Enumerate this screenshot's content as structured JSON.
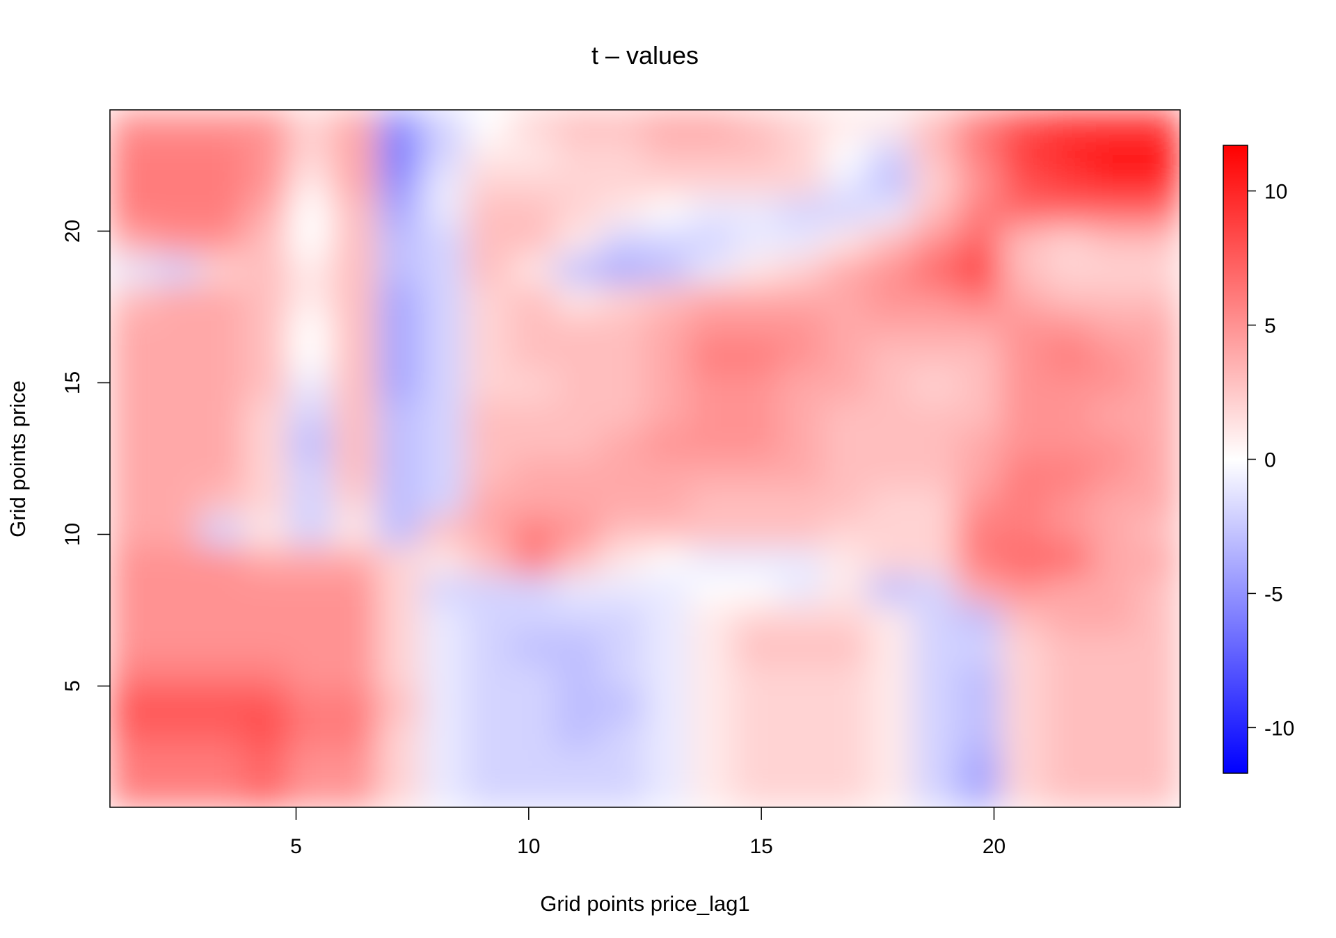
{
  "chart_data": {
    "type": "heatmap",
    "title": "t – values",
    "xlabel": "Grid points price_lag1",
    "ylabel": "Grid points price",
    "xlim": [
      1,
      24
    ],
    "ylim": [
      1,
      24
    ],
    "x_ticks": [
      5,
      10,
      15,
      20
    ],
    "y_ticks": [
      5,
      10,
      15,
      20
    ],
    "colorbar": {
      "min": -11.7,
      "max": 11.7,
      "ticks": [
        -10,
        -5,
        0,
        5,
        10
      ],
      "low_color": "#0000ff",
      "mid_color": "#ffffff",
      "high_color": "#ff0000"
    },
    "grid": false,
    "legend": "right",
    "rows_from_y1": [
      [
        6,
        6,
        6,
        7,
        5,
        5,
        2,
        -1,
        -2,
        -2,
        -2,
        -2,
        -1,
        1,
        2,
        2,
        2,
        1,
        -2,
        -4,
        2,
        3,
        3,
        3
      ],
      [
        6,
        6,
        6,
        7,
        5,
        5,
        2,
        -1,
        -2,
        -2,
        -2,
        -2,
        -1,
        1,
        2,
        2,
        2,
        1,
        -2,
        -4,
        2,
        3,
        3,
        3
      ],
      [
        7,
        7,
        7,
        8,
        6,
        6,
        2,
        -1,
        -2,
        -2,
        -3,
        -2,
        -1,
        1,
        2,
        2,
        2,
        1,
        -2,
        -3,
        2,
        3,
        3,
        3
      ],
      [
        8,
        8,
        8,
        8,
        6,
        6,
        3,
        -1,
        -2,
        -2,
        -3,
        -3,
        -1,
        1,
        2,
        2,
        2,
        1,
        -2,
        -3,
        2,
        3,
        3,
        3
      ],
      [
        6,
        6,
        6,
        6,
        5,
        5,
        2,
        -1,
        -2,
        -2,
        -3,
        -2,
        -1,
        1,
        2,
        2,
        2,
        1,
        -2,
        -3,
        2,
        3,
        3,
        3
      ],
      [
        5,
        5,
        5,
        5,
        5,
        5,
        2,
        -1,
        -2,
        -3,
        -3,
        -2,
        -1,
        1,
        3,
        3,
        3,
        1,
        -2,
        -2,
        2,
        3,
        3,
        3
      ],
      [
        5,
        5,
        5,
        5,
        5,
        5,
        2,
        -1,
        -2,
        -2,
        -2,
        -2,
        -1,
        1,
        2,
        2,
        2,
        1,
        -2,
        -3,
        3,
        4,
        4,
        3
      ],
      [
        5,
        5,
        5,
        5,
        5,
        5,
        2,
        -2,
        -2,
        -2,
        -1,
        -1,
        -1,
        0,
        0,
        -1,
        1,
        -3,
        -2,
        4,
        5,
        4,
        4,
        3
      ],
      [
        5,
        5,
        5,
        4,
        4,
        4,
        2,
        1,
        3,
        6,
        3,
        1,
        0,
        -1,
        -1,
        -1,
        1,
        2,
        2,
        6,
        7,
        7,
        4,
        4
      ],
      [
        4,
        4,
        -2,
        1,
        -2,
        1,
        -3,
        3,
        4,
        6,
        5,
        3,
        3,
        3,
        3,
        3,
        2,
        2,
        2,
        6,
        6,
        5,
        4,
        3
      ],
      [
        4,
        4,
        3,
        2,
        -2,
        2,
        -3,
        -2,
        4,
        4,
        4,
        4,
        4,
        3,
        3,
        3,
        3,
        2,
        2,
        5,
        6,
        5,
        4,
        4
      ],
      [
        4,
        4,
        4,
        2,
        -2,
        3,
        -3,
        -2,
        3,
        4,
        4,
        4,
        4,
        4,
        4,
        4,
        3,
        3,
        3,
        4,
        6,
        6,
        5,
        4
      ],
      [
        4,
        4,
        4,
        2,
        -3,
        3,
        -3,
        -2,
        3,
        3,
        3,
        4,
        5,
        5,
        5,
        4,
        3,
        3,
        3,
        4,
        5,
        5,
        5,
        4
      ],
      [
        4,
        4,
        4,
        2,
        -2,
        3,
        -3,
        -2,
        3,
        3,
        3,
        3,
        4,
        5,
        5,
        4,
        3,
        3,
        3,
        3,
        5,
        5,
        4,
        4
      ],
      [
        4,
        4,
        4,
        3,
        -1,
        3,
        -4,
        -2,
        2,
        2,
        3,
        3,
        4,
        5,
        5,
        4,
        4,
        3,
        2,
        3,
        5,
        5,
        5,
        4
      ],
      [
        4,
        4,
        4,
        3,
        0,
        3,
        -4,
        -2,
        2,
        3,
        3,
        3,
        4,
        6,
        6,
        5,
        4,
        3,
        3,
        3,
        5,
        6,
        5,
        4
      ],
      [
        4,
        4,
        4,
        3,
        0,
        3,
        -4,
        -2,
        2,
        3,
        3,
        3,
        4,
        5,
        5,
        5,
        4,
        4,
        4,
        4,
        5,
        5,
        4,
        4
      ],
      [
        3,
        4,
        4,
        3,
        1,
        3,
        -4,
        -2,
        2,
        3,
        1,
        2,
        3,
        4,
        4,
        4,
        4,
        5,
        5,
        6,
        4,
        3,
        3,
        3
      ],
      [
        -1,
        -2,
        2,
        3,
        1,
        3,
        -3,
        -2,
        3,
        1,
        -3,
        -4,
        -3,
        -1,
        1,
        2,
        4,
        5,
        7,
        9,
        3,
        2,
        2,
        2
      ],
      [
        4,
        5,
        5,
        3,
        0,
        3,
        -3,
        -2,
        3,
        3,
        1,
        -2,
        -2,
        -2,
        -1,
        -1,
        1,
        3,
        5,
        7,
        3,
        2,
        3,
        3
      ],
      [
        6,
        6,
        6,
        4,
        0,
        3,
        -4,
        -1,
        3,
        3,
        2,
        1,
        0,
        -1,
        -1,
        -2,
        -2,
        -1,
        3,
        6,
        7,
        7,
        7,
        7
      ],
      [
        6,
        6,
        6,
        5,
        1,
        4,
        -5,
        -1,
        2,
        2,
        2,
        2,
        2,
        2,
        2,
        2,
        -1,
        -3,
        2,
        5,
        8,
        9,
        10,
        10
      ],
      [
        6,
        6,
        6,
        5,
        2,
        4,
        -6,
        -2,
        1,
        1,
        2,
        2,
        3,
        3,
        3,
        2,
        0,
        -2,
        3,
        6,
        9,
        10,
        11,
        11
      ],
      [
        5,
        5,
        5,
        5,
        2,
        4,
        -5,
        -2,
        0,
        2,
        3,
        3,
        4,
        4,
        3,
        2,
        1,
        1,
        3,
        6,
        8,
        9,
        9,
        9
      ]
    ]
  }
}
